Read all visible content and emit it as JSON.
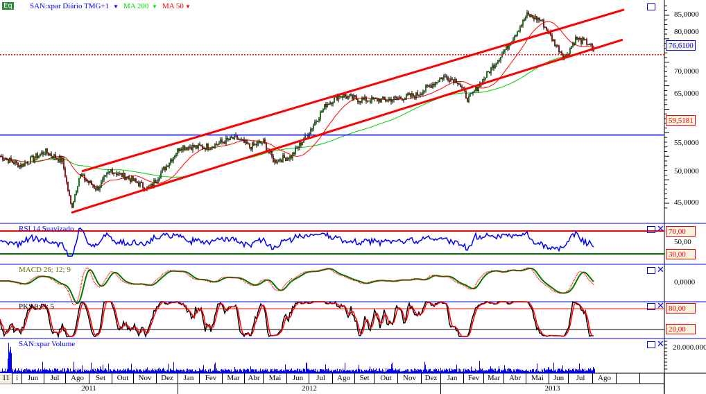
{
  "header": {
    "badge": "Eq",
    "symbol": "SAN:xpar Diário TMG+1",
    "ma200": "MA 200",
    "ma50": "MA 50"
  },
  "colors": {
    "price": "#000",
    "ma200": "#00cc00",
    "ma50": "#ff0000",
    "channel": "#ff0000",
    "accent": "#0000ff"
  },
  "price_axis": [
    "85,0000",
    "80,0000",
    "70,0000",
    "65,0000",
    "55,0000",
    "50,0000",
    "45,0000"
  ],
  "tags": {
    "last": "76,6100",
    "hline": "59,5181",
    "rsi70": "70,00",
    "rsi30": "30,00",
    "pks80": "80,00",
    "pks20": "20,00"
  },
  "panels": {
    "rsi": "RSI 14 Suavizado",
    "rsi_mid": "50,00",
    "macd": "MACD 26; 12; 9",
    "macd_zero": "0,0000",
    "pks": "PKS 9; 3; 5",
    "volume": "SAN:xpar Volume",
    "volume_tick": "20.000.000"
  },
  "months": [
    "11",
    "i",
    "Jun",
    "Jul",
    "Ago",
    "Set",
    "Out",
    "Nov",
    "Dez",
    "Jan",
    "Fev",
    "Mar",
    "Abr",
    "Mai",
    "Jun",
    "Jul",
    "Ago",
    "Set",
    "Out",
    "Nov",
    "Dez",
    "Jan",
    "Fev",
    "Mar",
    "Abr",
    "Mai",
    "Jun",
    "Jul",
    "Ago",
    "",
    ""
  ],
  "years": [
    "2011",
    "2012",
    "2013"
  ],
  "chart_data": {
    "type": "candlestick",
    "title": "SAN:xpar Diário",
    "ylim": [
      42,
      88
    ],
    "price_keypoints": [
      [
        0,
        55
      ],
      [
        30,
        53
      ],
      [
        65,
        56
      ],
      [
        90,
        54
      ],
      [
        103,
        44
      ],
      [
        115,
        51
      ],
      [
        140,
        48
      ],
      [
        160,
        52
      ],
      [
        190,
        50
      ],
      [
        215,
        48
      ],
      [
        240,
        53
      ],
      [
        260,
        57
      ],
      [
        300,
        57
      ],
      [
        340,
        59
      ],
      [
        360,
        57
      ],
      [
        380,
        58
      ],
      [
        395,
        54
      ],
      [
        420,
        55
      ],
      [
        445,
        60
      ],
      [
        470,
        66
      ],
      [
        490,
        68
      ],
      [
        520,
        67
      ],
      [
        560,
        67
      ],
      [
        600,
        68
      ],
      [
        640,
        72
      ],
      [
        660,
        71
      ],
      [
        675,
        67
      ],
      [
        700,
        72
      ],
      [
        730,
        78
      ],
      [
        760,
        85
      ],
      [
        780,
        84
      ],
      [
        800,
        79
      ],
      [
        815,
        76
      ],
      [
        830,
        80
      ],
      [
        850,
        79
      ],
      [
        857,
        76.61
      ]
    ],
    "last_price": 76.61,
    "horizontal_line": 59.5181,
    "channel_upper": [
      [
        118,
        51.8
      ],
      [
        900,
        86.2
      ]
    ],
    "channel_lower": [
      [
        103,
        43
      ],
      [
        898,
        79.8
      ]
    ],
    "rsi_levels": [
      70,
      30
    ],
    "pks_levels": [
      80,
      20
    ]
  }
}
